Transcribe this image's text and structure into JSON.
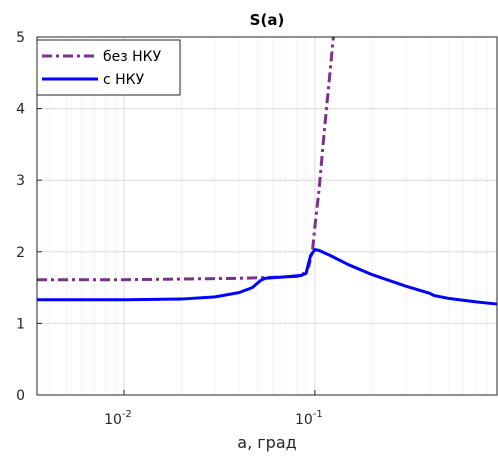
{
  "chart_data": {
    "type": "line",
    "title": "S(a)",
    "xlabel": "a, град",
    "ylabel": "",
    "xscale": "log",
    "xlim": [
      0.0035,
      0.9
    ],
    "ylim": [
      0,
      5
    ],
    "yticks": [
      "0",
      "1",
      "2",
      "3",
      "4",
      "5"
    ],
    "xticks": [
      {
        "value": 0.01,
        "base": "10",
        "exp": "-2"
      },
      {
        "value": 0.1,
        "base": "10",
        "exp": "-1"
      }
    ],
    "grid": true,
    "legend_position": "top-left",
    "series": [
      {
        "name": "без НКУ",
        "color": "#7E2F8E",
        "style": "dash-dot",
        "x": [
          0.0035,
          0.01,
          0.02,
          0.04,
          0.055,
          0.07,
          0.085,
          0.093,
          0.097,
          0.1,
          0.105,
          0.11,
          0.115,
          0.12,
          0.125
        ],
        "y": [
          1.61,
          1.61,
          1.62,
          1.63,
          1.64,
          1.65,
          1.66,
          1.8,
          2.0,
          2.35,
          2.85,
          3.45,
          4.0,
          4.5,
          5.0
        ]
      },
      {
        "name": "с НКУ",
        "color": "#0000FF",
        "style": "solid",
        "x": [
          0.0035,
          0.01,
          0.02,
          0.03,
          0.04,
          0.047,
          0.052,
          0.055,
          0.07,
          0.085,
          0.09,
          0.095,
          0.1,
          0.105,
          0.12,
          0.15,
          0.2,
          0.3,
          0.4,
          0.42,
          0.5,
          0.7,
          0.9
        ],
        "y": [
          1.33,
          1.33,
          1.34,
          1.37,
          1.43,
          1.5,
          1.6,
          1.63,
          1.65,
          1.67,
          1.7,
          1.95,
          2.03,
          2.02,
          1.95,
          1.82,
          1.68,
          1.52,
          1.42,
          1.39,
          1.35,
          1.3,
          1.27
        ]
      }
    ]
  }
}
